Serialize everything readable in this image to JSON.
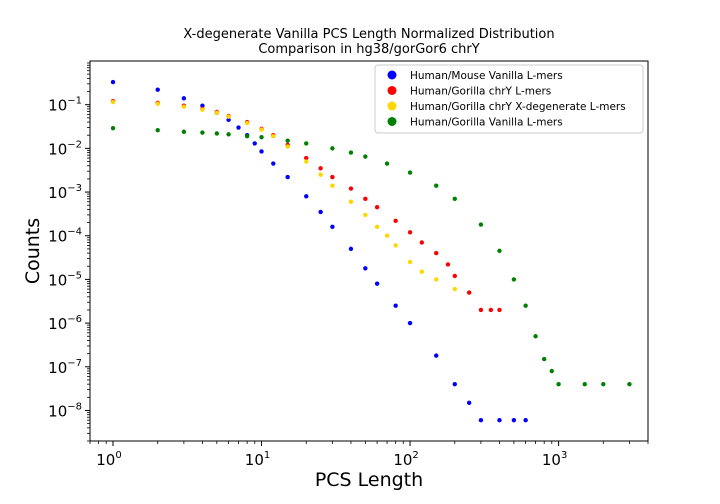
{
  "chart_data": {
    "type": "scatter",
    "title": [
      "X-degenerate Vanilla PCS Length Normalized Distribution",
      "Comparison in hg38/gorGor6 chrY"
    ],
    "xlabel": "PCS Length",
    "ylabel": "Counts",
    "xscale": "log",
    "yscale": "log",
    "xlim": [
      0.7,
      4000
    ],
    "ylim": [
      2e-09,
      1.0
    ],
    "x_ticks": [
      {
        "base": "10",
        "exp": "0",
        "value": 1
      },
      {
        "base": "10",
        "exp": "1",
        "value": 10
      },
      {
        "base": "10",
        "exp": "2",
        "value": 100
      },
      {
        "base": "10",
        "exp": "3",
        "value": 1000
      }
    ],
    "y_ticks": [
      {
        "base": "10",
        "exp": "−1",
        "value": 0.1
      },
      {
        "base": "10",
        "exp": "−2",
        "value": 0.01
      },
      {
        "base": "10",
        "exp": "−3",
        "value": 0.001
      },
      {
        "base": "10",
        "exp": "−4",
        "value": 0.0001
      },
      {
        "base": "10",
        "exp": "−5",
        "value": 1e-05
      },
      {
        "base": "10",
        "exp": "−6",
        "value": 1e-06
      },
      {
        "base": "10",
        "exp": "−7",
        "value": 1e-07
      },
      {
        "base": "10",
        "exp": "−8",
        "value": 1e-08
      }
    ],
    "legend_position": "upper-right",
    "series": [
      {
        "name": "Human/Mouse Vanilla L-mers",
        "color": "#0000ff",
        "x": [
          1,
          2,
          3,
          4,
          5,
          6,
          7,
          8,
          9,
          10,
          12,
          15,
          20,
          25,
          30,
          40,
          50,
          60,
          80,
          100,
          150,
          200,
          250,
          300,
          400,
          500,
          600
        ],
        "y": [
          0.33,
          0.22,
          0.14,
          0.095,
          0.065,
          0.045,
          0.03,
          0.02,
          0.013,
          0.0085,
          0.0045,
          0.0022,
          0.0008,
          0.00035,
          0.00016,
          5e-05,
          1.8e-05,
          8e-06,
          2.5e-06,
          1e-06,
          1.8e-07,
          4e-08,
          1.5e-08,
          6e-09,
          6e-09,
          6e-09,
          6e-09
        ]
      },
      {
        "name": "Human/Gorilla chrY L-mers",
        "color": "#ff0000",
        "x": [
          1,
          2,
          3,
          4,
          5,
          6,
          8,
          10,
          12,
          15,
          20,
          25,
          30,
          40,
          50,
          60,
          80,
          100,
          120,
          150,
          180,
          200,
          250,
          300,
          350,
          400
        ],
        "y": [
          0.12,
          0.11,
          0.095,
          0.08,
          0.068,
          0.055,
          0.04,
          0.028,
          0.02,
          0.012,
          0.006,
          0.0035,
          0.0022,
          0.0012,
          0.0007,
          0.00045,
          0.00022,
          0.00012,
          7e-05,
          4e-05,
          2.2e-05,
          1.2e-05,
          5e-06,
          2e-06,
          2e-06,
          2e-06
        ]
      },
      {
        "name": "Human/Gorilla chrY X-degenerate L-mers",
        "color": "#ffd700",
        "x": [
          1,
          2,
          3,
          4,
          5,
          6,
          8,
          10,
          12,
          15,
          20,
          25,
          30,
          40,
          50,
          60,
          70,
          80,
          100,
          120,
          150,
          200
        ],
        "y": [
          0.115,
          0.105,
          0.09,
          0.077,
          0.065,
          0.053,
          0.038,
          0.027,
          0.019,
          0.011,
          0.005,
          0.0025,
          0.0014,
          0.0006,
          0.0003,
          0.00016,
          0.0001,
          6e-05,
          2.5e-05,
          1.5e-05,
          1e-05,
          6e-06
        ]
      },
      {
        "name": "Human/Gorilla Vanilla L-mers",
        "color": "#008000",
        "x": [
          1,
          2,
          3,
          4,
          5,
          6,
          8,
          10,
          15,
          20,
          30,
          40,
          50,
          70,
          100,
          150,
          200,
          300,
          400,
          500,
          600,
          700,
          800,
          900,
          1000,
          1500,
          2000,
          3000
        ],
        "y": [
          0.029,
          0.026,
          0.024,
          0.023,
          0.022,
          0.021,
          0.019,
          0.018,
          0.015,
          0.013,
          0.01,
          0.008,
          0.0065,
          0.0045,
          0.0028,
          0.0014,
          0.0007,
          0.00018,
          4.5e-05,
          1e-05,
          2.5e-06,
          5e-07,
          1.5e-07,
          8e-08,
          4e-08,
          4e-08,
          4e-08,
          4e-08
        ]
      }
    ]
  }
}
